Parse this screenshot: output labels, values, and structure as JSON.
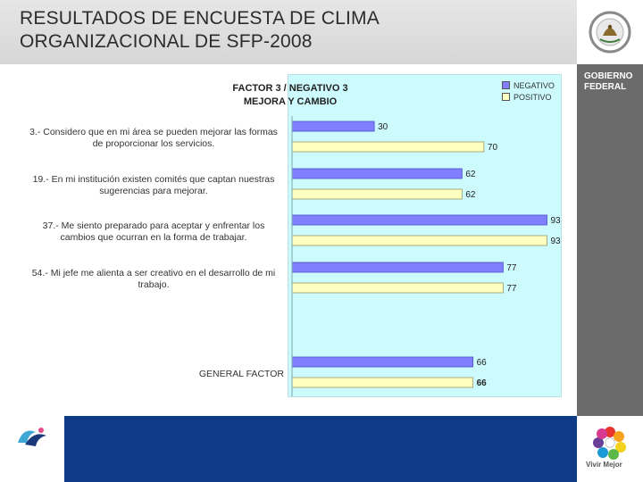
{
  "header": {
    "title": "RESULTADOS DE ENCUESTA DE CLIMA\nORGANIZACIONAL DE SFP-2008"
  },
  "branding": {
    "gobierno_line1": "GOBIERNO",
    "gobierno_line2": "FEDERAL",
    "vivir_mejor": "Vivir Mejor"
  },
  "colors": {
    "negativo": "#8080ff",
    "positivo": "#ffffc0",
    "panel": "#ccfafd",
    "footer": "#0e3a88"
  },
  "chart_data": {
    "type": "bar",
    "orientation": "horizontal",
    "title": "FACTOR  3  /  NEGATIVO 3\nMEJORA Y CAMBIO",
    "categories": [
      "3.-  Considero que en mi área se pueden mejorar las formas\nde proporcionar los servicios.",
      "19.-  En mi institución existen comités que captan nuestras\nsugerencias para mejorar.",
      "37.-  Me siento preparado para aceptar y enfrentar los\ncambios que ocurran en la forma de trabajar.",
      "54.-  Mi jefe me alienta a ser creativo en el desarrollo de mi\ntrabajo.",
      "GENERAL FACTOR"
    ],
    "series": [
      {
        "name": "NEGATIVO",
        "values": [
          30,
          62,
          93,
          77,
          66
        ]
      },
      {
        "name": "POSITIVO",
        "values": [
          70,
          62,
          93,
          77,
          66
        ]
      }
    ],
    "value_labels": [
      [
        "30",
        "62",
        "93",
        "77",
        "66"
      ],
      [
        "70",
        "62",
        "93",
        "77",
        "66"
      ]
    ],
    "xlim": [
      0,
      100
    ],
    "grid": false,
    "legend_position": "top-right"
  }
}
